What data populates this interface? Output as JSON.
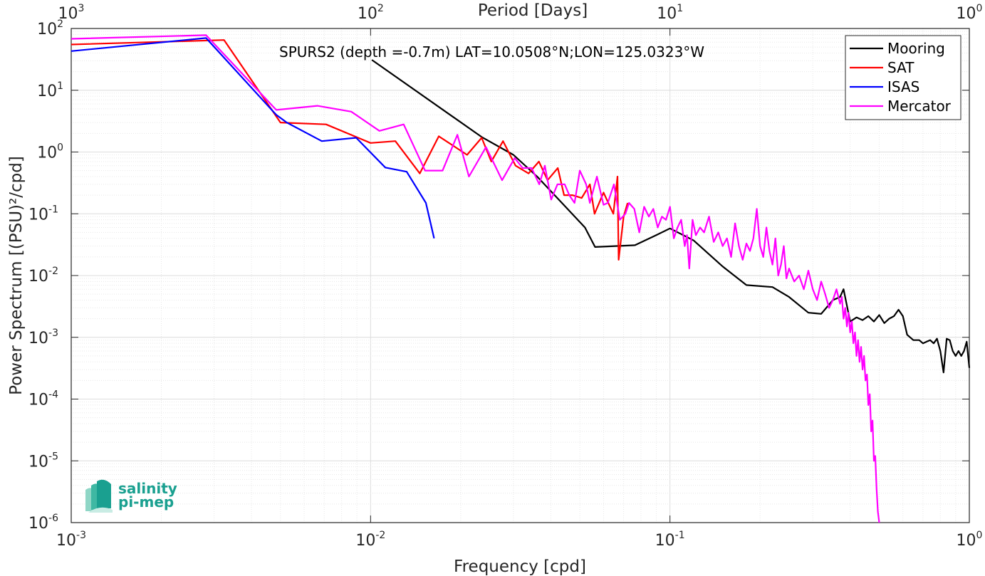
{
  "chart_data": {
    "type": "line",
    "title": "SPURS2 (depth =-0.7m) LAT=10.0508°N;LON=125.0323°W",
    "xlabel": "Frequency [cpd]",
    "ylabel": "Power Spectrum [(PSU)²/cpd]",
    "top_xlabel": "Period [Days]",
    "xscale": "log",
    "yscale": "log",
    "xlim": [
      0.001,
      1
    ],
    "ylim": [
      1e-06,
      100
    ],
    "grid": true,
    "legend_position": "top-right",
    "x_ticks": [
      {
        "base": "10",
        "exp": "-3",
        "value": 0.001
      },
      {
        "base": "10",
        "exp": "-2",
        "value": 0.01
      },
      {
        "base": "10",
        "exp": "-1",
        "value": 0.1
      },
      {
        "base": "10",
        "exp": "0",
        "value": 1
      }
    ],
    "top_ticks": [
      {
        "base": "10",
        "exp": "3",
        "value": 0.001
      },
      {
        "base": "10",
        "exp": "2",
        "value": 0.01
      },
      {
        "base": "10",
        "exp": "1",
        "value": 0.1
      },
      {
        "base": "10",
        "exp": "0",
        "value": 1
      }
    ],
    "y_ticks": [
      {
        "base": "10",
        "exp": "2",
        "value": 100
      },
      {
        "base": "10",
        "exp": "1",
        "value": 10
      },
      {
        "base": "10",
        "exp": "0",
        "value": 1
      },
      {
        "base": "10",
        "exp": "-1",
        "value": 0.1
      },
      {
        "base": "10",
        "exp": "-2",
        "value": 0.01
      },
      {
        "base": "10",
        "exp": "-3",
        "value": 0.001
      },
      {
        "base": "10",
        "exp": "-4",
        "value": 0.0001
      },
      {
        "base": "10",
        "exp": "-5",
        "value": 1e-05
      },
      {
        "base": "10",
        "exp": "-6",
        "value": 1e-06
      }
    ],
    "series": [
      {
        "name": "Mooring",
        "color": "#000000",
        "points": [
          [
            0.0101,
            31
          ],
          [
            0.0235,
            1.75
          ],
          [
            0.03,
            0.9
          ],
          [
            0.036,
            0.4
          ],
          [
            0.043,
            0.16
          ],
          [
            0.052,
            0.06
          ],
          [
            0.0562,
            0.029
          ],
          [
            0.0764,
            0.031
          ],
          [
            0.09,
            0.045
          ],
          [
            0.1,
            0.058
          ],
          [
            0.12,
            0.037
          ],
          [
            0.15,
            0.014
          ],
          [
            0.18,
            0.007
          ],
          [
            0.22,
            0.0065
          ],
          [
            0.25,
            0.0045
          ],
          [
            0.29,
            0.0025
          ],
          [
            0.32,
            0.0024
          ],
          [
            0.35,
            0.004
          ],
          [
            0.37,
            0.0045
          ],
          [
            0.38,
            0.006
          ],
          [
            0.4,
            0.0018
          ],
          [
            0.42,
            0.0021
          ],
          [
            0.44,
            0.0019
          ],
          [
            0.46,
            0.0022
          ],
          [
            0.48,
            0.0018
          ],
          [
            0.5,
            0.0023
          ],
          [
            0.52,
            0.0017
          ],
          [
            0.54,
            0.002
          ],
          [
            0.56,
            0.0022
          ],
          [
            0.58,
            0.0028
          ],
          [
            0.6,
            0.0022
          ],
          [
            0.62,
            0.0011
          ],
          [
            0.65,
            0.0009
          ],
          [
            0.68,
            0.0009
          ],
          [
            0.7,
            0.0008
          ],
          [
            0.72,
            0.00085
          ],
          [
            0.74,
            0.0009
          ],
          [
            0.76,
            0.0008
          ],
          [
            0.78,
            0.00095
          ],
          [
            0.8,
            0.0006
          ],
          [
            0.82,
            0.00027
          ],
          [
            0.84,
            0.00095
          ],
          [
            0.86,
            0.0009
          ],
          [
            0.88,
            0.0006
          ],
          [
            0.9,
            0.0005
          ],
          [
            0.92,
            0.0006
          ],
          [
            0.94,
            0.0005
          ],
          [
            0.96,
            0.0006
          ],
          [
            0.98,
            0.00085
          ],
          [
            1.0,
            0.00032
          ]
        ]
      },
      {
        "name": "SAT",
        "color": "#ff0000",
        "points": [
          [
            0.001,
            55
          ],
          [
            0.00324,
            65
          ],
          [
            0.005,
            3
          ],
          [
            0.0071,
            2.8
          ],
          [
            0.01,
            1.4
          ],
          [
            0.0121,
            1.5
          ],
          [
            0.0146,
            0.45
          ],
          [
            0.0169,
            1.8
          ],
          [
            0.021,
            0.9
          ],
          [
            0.0235,
            1.7
          ],
          [
            0.0253,
            0.7
          ],
          [
            0.0277,
            1.5
          ],
          [
            0.0305,
            0.6
          ],
          [
            0.0337,
            0.45
          ],
          [
            0.0365,
            0.7
          ],
          [
            0.039,
            0.35
          ],
          [
            0.0422,
            0.55
          ],
          [
            0.0443,
            0.2
          ],
          [
            0.0472,
            0.2
          ],
          [
            0.0507,
            0.18
          ],
          [
            0.054,
            0.3
          ],
          [
            0.056,
            0.1
          ],
          [
            0.06,
            0.22
          ],
          [
            0.0647,
            0.1
          ],
          [
            0.0668,
            0.4
          ],
          [
            0.0674,
            0.018
          ],
          [
            0.07,
            0.09
          ],
          [
            0.0722,
            0.15
          ]
        ]
      },
      {
        "name": "ISAS",
        "color": "#0000ff",
        "points": [
          [
            0.001,
            43
          ],
          [
            0.00282,
            70
          ],
          [
            0.00484,
            4
          ],
          [
            0.00525,
            3
          ],
          [
            0.00687,
            1.5
          ],
          [
            0.00895,
            1.7
          ],
          [
            0.0112,
            0.56
          ],
          [
            0.0132,
            0.48
          ],
          [
            0.0153,
            0.15
          ],
          [
            0.0163,
            0.04
          ]
        ]
      },
      {
        "name": "Mercator",
        "color": "#ff00ff",
        "points": [
          [
            0.001,
            68
          ],
          [
            0.00282,
            78
          ],
          [
            0.00484,
            4.8
          ],
          [
            0.00664,
            5.6
          ],
          [
            0.00862,
            4.5
          ],
          [
            0.0107,
            2.2
          ],
          [
            0.0129,
            2.8
          ],
          [
            0.0152,
            0.5
          ],
          [
            0.0174,
            0.5
          ],
          [
            0.0195,
            1.9
          ],
          [
            0.0213,
            0.4
          ],
          [
            0.0243,
            1.2
          ],
          [
            0.0275,
            0.35
          ],
          [
            0.0303,
            0.8
          ],
          [
            0.0322,
            0.55
          ],
          [
            0.0345,
            0.55
          ],
          [
            0.0366,
            0.3
          ],
          [
            0.0382,
            0.6
          ],
          [
            0.0401,
            0.17
          ],
          [
            0.0421,
            0.3
          ],
          [
            0.0445,
            0.3
          ],
          [
            0.0461,
            0.2
          ],
          [
            0.048,
            0.15
          ],
          [
            0.05,
            0.5
          ],
          [
            0.0525,
            0.3
          ],
          [
            0.054,
            0.15
          ],
          [
            0.057,
            0.4
          ],
          [
            0.06,
            0.14
          ],
          [
            0.062,
            0.15
          ],
          [
            0.065,
            0.3
          ],
          [
            0.068,
            0.08
          ],
          [
            0.071,
            0.1
          ],
          [
            0.073,
            0.15
          ],
          [
            0.076,
            0.12
          ],
          [
            0.079,
            0.05
          ],
          [
            0.082,
            0.13
          ],
          [
            0.085,
            0.09
          ],
          [
            0.088,
            0.12
          ],
          [
            0.091,
            0.06
          ],
          [
            0.094,
            0.09
          ],
          [
            0.097,
            0.08
          ],
          [
            0.1,
            0.13
          ],
          [
            0.103,
            0.04
          ],
          [
            0.106,
            0.06
          ],
          [
            0.109,
            0.08
          ],
          [
            0.112,
            0.03
          ],
          [
            0.114,
            0.045
          ],
          [
            0.116,
            0.013
          ],
          [
            0.119,
            0.08
          ],
          [
            0.122,
            0.045
          ],
          [
            0.126,
            0.06
          ],
          [
            0.13,
            0.05
          ],
          [
            0.135,
            0.09
          ],
          [
            0.14,
            0.035
          ],
          [
            0.145,
            0.05
          ],
          [
            0.15,
            0.03
          ],
          [
            0.155,
            0.04
          ],
          [
            0.16,
            0.02
          ],
          [
            0.165,
            0.07
          ],
          [
            0.17,
            0.03
          ],
          [
            0.175,
            0.018
          ],
          [
            0.18,
            0.033
          ],
          [
            0.185,
            0.025
          ],
          [
            0.19,
            0.04
          ],
          [
            0.195,
            0.12
          ],
          [
            0.2,
            0.03
          ],
          [
            0.205,
            0.02
          ],
          [
            0.21,
            0.06
          ],
          [
            0.215,
            0.025
          ],
          [
            0.22,
            0.015
          ],
          [
            0.225,
            0.04
          ],
          [
            0.23,
            0.01
          ],
          [
            0.235,
            0.015
          ],
          [
            0.24,
            0.03
          ],
          [
            0.245,
            0.009
          ],
          [
            0.25,
            0.013
          ],
          [
            0.26,
            0.008
          ],
          [
            0.27,
            0.01
          ],
          [
            0.28,
            0.006
          ],
          [
            0.29,
            0.012
          ],
          [
            0.3,
            0.006
          ],
          [
            0.31,
            0.004
          ],
          [
            0.32,
            0.008
          ],
          [
            0.33,
            0.005
          ],
          [
            0.34,
            0.003
          ],
          [
            0.35,
            0.004
          ],
          [
            0.36,
            0.006
          ],
          [
            0.37,
            0.0035
          ],
          [
            0.375,
            0.0045
          ],
          [
            0.38,
            0.002
          ],
          [
            0.385,
            0.003
          ],
          [
            0.39,
            0.0015
          ],
          [
            0.395,
            0.0025
          ],
          [
            0.4,
            0.0012
          ],
          [
            0.405,
            0.0018
          ],
          [
            0.41,
            0.0008
          ],
          [
            0.415,
            0.0012
          ],
          [
            0.42,
            0.0005
          ],
          [
            0.425,
            0.0009
          ],
          [
            0.43,
            0.0004
          ],
          [
            0.435,
            0.0007
          ],
          [
            0.44,
            0.0003
          ],
          [
            0.445,
            0.0005
          ],
          [
            0.45,
            0.0002
          ],
          [
            0.455,
            0.00025
          ],
          [
            0.46,
            8e-05
          ],
          [
            0.465,
            0.00012
          ],
          [
            0.47,
            3e-05
          ],
          [
            0.475,
            4.5e-05
          ],
          [
            0.48,
            1e-05
          ],
          [
            0.485,
            1.2e-05
          ],
          [
            0.49,
            3.5e-06
          ],
          [
            0.495,
            1.5e-06
          ],
          [
            0.5,
            1e-06
          ]
        ]
      }
    ]
  },
  "logo": {
    "line1": "salinity",
    "line2": "pi-mep",
    "color": "#1aa090"
  }
}
